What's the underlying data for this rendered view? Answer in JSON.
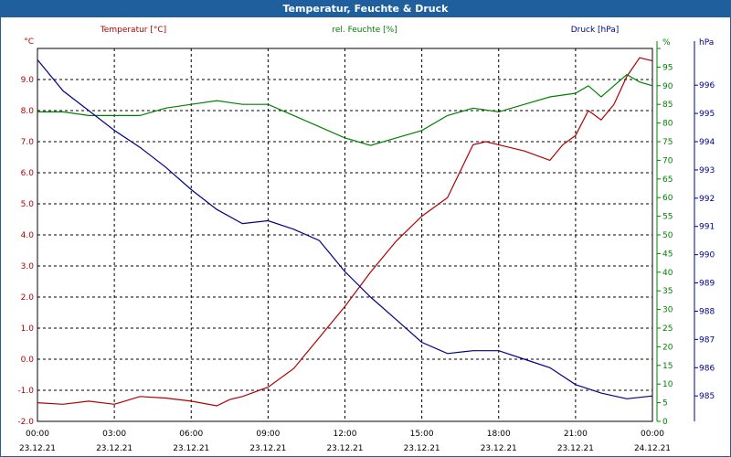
{
  "window": {
    "title": "Temperatur, Feuchte & Druck"
  },
  "chart_data": {
    "type": "line",
    "title": "Temperatur, Feuchte & Druck",
    "x_labels": [
      {
        "time": "00:00",
        "date": "23.12.21"
      },
      {
        "time": "03:00",
        "date": "23.12.21"
      },
      {
        "time": "06:00",
        "date": "23.12.21"
      },
      {
        "time": "09:00",
        "date": "23.12.21"
      },
      {
        "time": "12:00",
        "date": "23.12.21"
      },
      {
        "time": "15:00",
        "date": "23.12.21"
      },
      {
        "time": "18:00",
        "date": "23.12.21"
      },
      {
        "time": "21:00",
        "date": "23.12.21"
      },
      {
        "time": "00:00",
        "date": "24.12.21"
      }
    ],
    "xlim": [
      0,
      24
    ],
    "grid": true,
    "axes": {
      "left": {
        "unit": "°C",
        "color": "#b00000",
        "min": -2,
        "max": 10,
        "ticks": [
          "-2.0",
          "-1.0",
          "0.0",
          "1.0",
          "2.0",
          "3.0",
          "4.0",
          "5.0",
          "6.0",
          "7.0",
          "8.0",
          "9.0"
        ]
      },
      "right1": {
        "unit": "%",
        "color": "#008000",
        "min": 0,
        "max": 100,
        "ticks": [
          "0",
          "5",
          "10",
          "15",
          "20",
          "25",
          "30",
          "35",
          "40",
          "45",
          "50",
          "55",
          "60",
          "65",
          "70",
          "75",
          "80",
          "85",
          "90",
          "95",
          "%"
        ]
      },
      "right2": {
        "unit": "hPa",
        "color": "#00008b",
        "min": 984.1,
        "max": 997.3,
        "ticks": [
          "985",
          "986",
          "987",
          "988",
          "989",
          "990",
          "991",
          "992",
          "993",
          "994",
          "995",
          "996",
          "hPa"
        ]
      }
    },
    "series": [
      {
        "name": "Temperatur [°C]",
        "axis": "left",
        "color": "#b00000",
        "x": [
          0,
          1,
          2,
          3,
          4,
          5,
          6,
          7,
          7.5,
          8,
          9,
          10,
          11,
          12,
          13,
          14,
          15,
          16,
          17,
          17.5,
          18,
          19,
          20,
          20.5,
          21,
          21.5,
          22,
          22.5,
          23,
          23.5,
          24
        ],
        "y": [
          -1.4,
          -1.45,
          -1.35,
          -1.45,
          -1.2,
          -1.25,
          -1.35,
          -1.5,
          -1.3,
          -1.2,
          -0.9,
          -0.3,
          0.7,
          1.7,
          2.8,
          3.8,
          4.6,
          5.2,
          6.9,
          7.0,
          6.9,
          6.7,
          6.4,
          6.9,
          7.2,
          8.0,
          7.7,
          8.2,
          9.1,
          9.7,
          9.6
        ]
      },
      {
        "name": "rel. Feuchte [%]",
        "axis": "right1",
        "color": "#008000",
        "x": [
          0,
          1,
          2,
          3,
          4,
          5,
          6,
          7,
          8,
          9,
          10,
          11,
          12,
          13,
          14,
          15,
          16,
          17,
          18,
          19,
          20,
          21,
          21.5,
          22,
          22.5,
          23,
          23.5,
          24
        ],
        "y": [
          83,
          83,
          82,
          82,
          82,
          84,
          85,
          86,
          85,
          85,
          82,
          79,
          76,
          74,
          76,
          78,
          82,
          84,
          83,
          85,
          87,
          88,
          90,
          87,
          90,
          93,
          91,
          90
        ]
      },
      {
        "name": "Druck [hPa]",
        "axis": "right2",
        "color": "#00008b",
        "x": [
          0,
          1,
          2,
          3,
          4,
          5,
          6,
          7,
          8,
          9,
          10,
          11,
          12,
          13,
          14,
          15,
          16,
          17,
          18,
          19,
          20,
          21,
          22,
          23,
          24
        ],
        "y": [
          996.9,
          995.8,
          995.1,
          994.4,
          993.8,
          993.1,
          992.3,
          991.6,
          991.1,
          991.2,
          990.9,
          990.5,
          989.4,
          988.5,
          987.7,
          986.9,
          986.5,
          986.6,
          986.6,
          986.3,
          986.0,
          985.4,
          985.1,
          984.9,
          985.0
        ]
      }
    ]
  }
}
